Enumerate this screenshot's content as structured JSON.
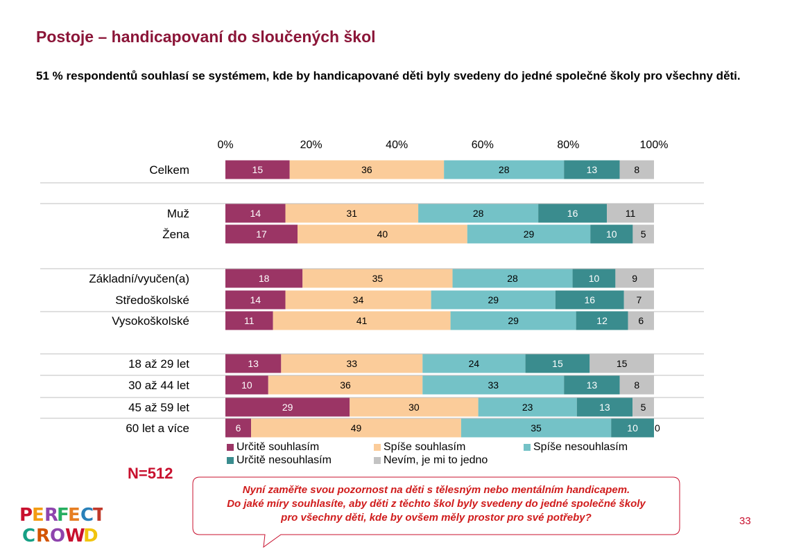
{
  "page": {
    "title": "Postoje – handicapovaní do sloučených škol",
    "subtitle": "51 % respondentů souhlasí se systémem, kde by handicapované děti byly svedeny do jedné společné školy pro všechny děti.",
    "sample": "N=512",
    "question_lines": [
      "Nyní zaměřte svou pozornost na děti s tělesným nebo mentálním handicapem.",
      "Do jaké míry souhlasíte, aby děti z těchto škol byly svedeny do jedné společné školy",
      "pro všechny děti, kde by ovšem měly prostor pro své potřeby?"
    ],
    "page_number": "33",
    "logo": "PERFECT CROWD"
  },
  "chart_data": {
    "type": "bar",
    "orientation": "horizontal",
    "stacked": true,
    "xlim": [
      0,
      100
    ],
    "x_ticks": [
      "0%",
      "20%",
      "40%",
      "60%",
      "80%",
      "100%"
    ],
    "categories": [
      "Celkem",
      "Muž",
      "Žena",
      "Základní/vyučen(a)",
      "Středoškolské",
      "Vysokoškolské",
      "18 až 29 let",
      "30 až 44 let",
      "45 až 59 let",
      "60 let a více"
    ],
    "groups": [
      [
        0
      ],
      [
        1,
        2
      ],
      [
        3,
        4,
        5
      ],
      [
        6,
        7,
        8,
        9
      ]
    ],
    "series": [
      {
        "name": "Určitě souhlasím",
        "color": "#9b3565",
        "values": [
          15,
          14,
          17,
          18,
          14,
          11,
          13,
          10,
          29,
          6
        ]
      },
      {
        "name": "Spíše souhlasím",
        "color": "#fbcc9a",
        "values": [
          36,
          31,
          40,
          35,
          34,
          41,
          33,
          36,
          30,
          49
        ]
      },
      {
        "name": "Spíše nesouhlasím",
        "color": "#74c2c7",
        "values": [
          28,
          28,
          29,
          28,
          29,
          29,
          24,
          33,
          23,
          35
        ]
      },
      {
        "name": "Určitě nesouhlasím",
        "color": "#3a8c8e",
        "values": [
          13,
          16,
          10,
          10,
          16,
          12,
          15,
          13,
          13,
          10
        ]
      },
      {
        "name": "Nevím, je mi to jedno",
        "color": "#c3c3c3",
        "values": [
          8,
          11,
          5,
          9,
          7,
          6,
          15,
          8,
          5,
          0
        ]
      }
    ],
    "legend_position": "bottom"
  }
}
